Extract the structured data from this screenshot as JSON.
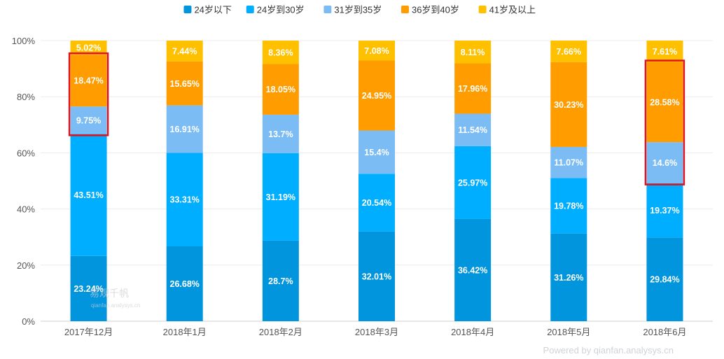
{
  "chart_data": {
    "type": "bar",
    "stacked": true,
    "categories": [
      "2017年12月",
      "2018年1月",
      "2018年2月",
      "2018年3月",
      "2018年4月",
      "2018年5月",
      "2018年6月"
    ],
    "series": [
      {
        "name": "24岁以下",
        "color": "#0095dd",
        "values": [
          23.24,
          26.68,
          28.7,
          32.01,
          36.42,
          31.26,
          29.84
        ],
        "labels": [
          "23.24%",
          "26.68%",
          "28.7%",
          "32.01%",
          "36.42%",
          "31.26%",
          "29.84%"
        ]
      },
      {
        "name": "24岁到30岁",
        "color": "#00aeff",
        "values": [
          43.51,
          33.31,
          31.19,
          20.54,
          25.97,
          19.78,
          19.37
        ],
        "labels": [
          "43.51%",
          "33.31%",
          "31.19%",
          "20.54%",
          "25.97%",
          "19.78%",
          "19.37%"
        ]
      },
      {
        "name": "31岁到35岁",
        "color": "#7cbcf5",
        "values": [
          9.75,
          16.91,
          13.7,
          15.4,
          11.54,
          11.07,
          14.6
        ],
        "labels": [
          "9.75%",
          "16.91%",
          "13.7%",
          "15.4%",
          "11.54%",
          "11.07%",
          "14.6%"
        ]
      },
      {
        "name": "36岁到40岁",
        "color": "#ff9c00",
        "values": [
          18.47,
          15.65,
          18.05,
          24.95,
          17.96,
          30.23,
          28.58
        ],
        "labels": [
          "18.47%",
          "15.65%",
          "18.05%",
          "24.95%",
          "17.96%",
          "30.23%",
          "28.58%"
        ]
      },
      {
        "name": "41岁及以上",
        "color": "#ffc000",
        "values": [
          5.02,
          7.44,
          8.36,
          7.08,
          8.11,
          7.66,
          7.61
        ],
        "labels": [
          "5.02%",
          "7.44%",
          "8.36%",
          "7.08%",
          "8.11%",
          "7.66%",
          "7.61%"
        ]
      }
    ],
    "y_ticks": [
      "0%",
      "20%",
      "40%",
      "60%",
      "80%",
      "100%"
    ],
    "ylim": [
      0,
      100
    ],
    "legend_position": "top-center",
    "highlights": [
      {
        "category_index": 0,
        "series_from": 2,
        "series_to": 3,
        "color": "#e0141e"
      },
      {
        "category_index": 6,
        "series_from": 2,
        "series_to": 3,
        "color": "#e0141e"
      }
    ]
  },
  "watermark": {
    "name": "易观千帆",
    "url": "qianfan.analysys.cn"
  },
  "footer": "Powered by qianfan.analysys.cn"
}
